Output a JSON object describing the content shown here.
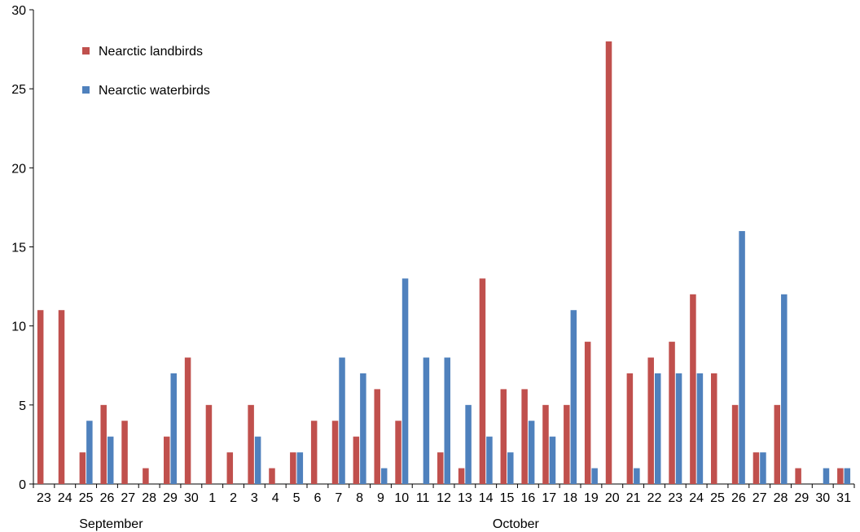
{
  "chart_data": {
    "type": "bar",
    "title": "",
    "xlabel": "",
    "ylabel": "",
    "ylim": [
      0,
      30
    ],
    "yticks": [
      0,
      5,
      10,
      15,
      20,
      25,
      30
    ],
    "grid": false,
    "legend_position": "top-left",
    "categories": [
      "23",
      "24",
      "25",
      "26",
      "27",
      "28",
      "29",
      "30",
      "1",
      "2",
      "3",
      "4",
      "5",
      "6",
      "7",
      "8",
      "9",
      "10",
      "11",
      "12",
      "13",
      "14",
      "15",
      "16",
      "17",
      "18",
      "19",
      "20",
      "21",
      "22",
      "23",
      "24",
      "25",
      "26",
      "27",
      "28",
      "29",
      "30",
      "31"
    ],
    "month_groups": [
      {
        "label": "September",
        "start_index": 0,
        "end_index": 7
      },
      {
        "label": "October",
        "start_index": 8,
        "end_index": 38
      }
    ],
    "series": [
      {
        "name": "Nearctic landbirds",
        "color": "#C0504D",
        "values": [
          11,
          11,
          2,
          5,
          4,
          1,
          3,
          8,
          5,
          2,
          5,
          1,
          2,
          4,
          4,
          3,
          6,
          4,
          0,
          2,
          1,
          13,
          6,
          6,
          5,
          5,
          9,
          28,
          7,
          8,
          9,
          12,
          7,
          5,
          2,
          5,
          1,
          0,
          1
        ]
      },
      {
        "name": "Nearctic waterbirds",
        "color": "#4F81BD",
        "values": [
          0,
          0,
          4,
          3,
          0,
          0,
          7,
          0,
          0,
          0,
          3,
          0,
          2,
          0,
          8,
          7,
          1,
          13,
          8,
          8,
          5,
          3,
          2,
          4,
          3,
          11,
          1,
          0,
          1,
          7,
          7,
          7,
          0,
          16,
          2,
          12,
          0,
          1,
          1
        ]
      }
    ]
  }
}
